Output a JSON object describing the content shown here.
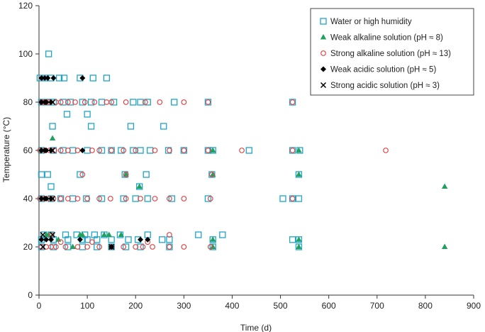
{
  "chart_data": {
    "type": "scatter",
    "xlabel": "Time (d)",
    "ylabel": "Temperature (°C)",
    "xlim": [
      0,
      900
    ],
    "ylim": [
      0,
      120
    ],
    "xticks": [
      0,
      100,
      200,
      300,
      400,
      500,
      600,
      700,
      800,
      900
    ],
    "yticks": [
      0,
      20,
      40,
      60,
      80,
      100,
      120
    ],
    "grid": false,
    "legend_position": "top-right",
    "series": [
      {
        "name": "Water or high humidity",
        "marker": "open-square",
        "color": "#1fa5c8",
        "points": [
          [
            2,
            90
          ],
          [
            14,
            90
          ],
          [
            25,
            90
          ],
          [
            42,
            90
          ],
          [
            52,
            90
          ],
          [
            85,
            90
          ],
          [
            112,
            90
          ],
          [
            140,
            90
          ],
          [
            20,
            100
          ],
          [
            5,
            80
          ],
          [
            18,
            80
          ],
          [
            30,
            80
          ],
          [
            50,
            80
          ],
          [
            65,
            80
          ],
          [
            90,
            80
          ],
          [
            108,
            80
          ],
          [
            130,
            80
          ],
          [
            155,
            80
          ],
          [
            195,
            80
          ],
          [
            210,
            80
          ],
          [
            225,
            80
          ],
          [
            280,
            80
          ],
          [
            350,
            80
          ],
          [
            525,
            80
          ],
          [
            58,
            75
          ],
          [
            100,
            75
          ],
          [
            28,
            70
          ],
          [
            108,
            70
          ],
          [
            190,
            70
          ],
          [
            258,
            70
          ],
          [
            5,
            60
          ],
          [
            30,
            60
          ],
          [
            50,
            60
          ],
          [
            70,
            60
          ],
          [
            100,
            60
          ],
          [
            130,
            60
          ],
          [
            150,
            60
          ],
          [
            170,
            60
          ],
          [
            195,
            60
          ],
          [
            210,
            60
          ],
          [
            230,
            60
          ],
          [
            268,
            60
          ],
          [
            300,
            60
          ],
          [
            350,
            60
          ],
          [
            360,
            60
          ],
          [
            435,
            60
          ],
          [
            525,
            60
          ],
          [
            540,
            60
          ],
          [
            5,
            50
          ],
          [
            18,
            50
          ],
          [
            85,
            50
          ],
          [
            178,
            50
          ],
          [
            222,
            50
          ],
          [
            358,
            50
          ],
          [
            538,
            50
          ],
          [
            25,
            45
          ],
          [
            208,
            45
          ],
          [
            5,
            40
          ],
          [
            25,
            40
          ],
          [
            45,
            40
          ],
          [
            70,
            40
          ],
          [
            98,
            40
          ],
          [
            130,
            40
          ],
          [
            175,
            40
          ],
          [
            200,
            40
          ],
          [
            225,
            40
          ],
          [
            275,
            40
          ],
          [
            350,
            40
          ],
          [
            505,
            40
          ],
          [
            525,
            40
          ],
          [
            538,
            40
          ],
          [
            10,
            25
          ],
          [
            25,
            25
          ],
          [
            55,
            25
          ],
          [
            78,
            25
          ],
          [
            95,
            25
          ],
          [
            115,
            25
          ],
          [
            135,
            25
          ],
          [
            168,
            25
          ],
          [
            225,
            25
          ],
          [
            330,
            25
          ],
          [
            380,
            25
          ],
          [
            5,
            23
          ],
          [
            30,
            23
          ],
          [
            60,
            23
          ],
          [
            90,
            23
          ],
          [
            100,
            23
          ],
          [
            120,
            23
          ],
          [
            150,
            23
          ],
          [
            185,
            23
          ],
          [
            205,
            23
          ],
          [
            255,
            23
          ],
          [
            270,
            23
          ],
          [
            360,
            23
          ],
          [
            525,
            23
          ],
          [
            538,
            23
          ],
          [
            5,
            20
          ],
          [
            30,
            20
          ],
          [
            60,
            20
          ],
          [
            90,
            20
          ],
          [
            120,
            20
          ],
          [
            150,
            20
          ],
          [
            180,
            20
          ],
          [
            210,
            20
          ],
          [
            270,
            20
          ],
          [
            360,
            20
          ],
          [
            538,
            20
          ]
        ]
      },
      {
        "name": "Weak alkaline solution (pH ≈ 8)",
        "marker": "filled-triangle",
        "color": "#22a060",
        "points": [
          [
            28,
            65
          ],
          [
            5,
            60
          ],
          [
            360,
            60
          ],
          [
            538,
            60
          ],
          [
            15,
            40
          ],
          [
            538,
            50
          ],
          [
            360,
            50
          ],
          [
            180,
            50
          ],
          [
            208,
            45
          ],
          [
            840,
            45
          ],
          [
            15,
            25
          ],
          [
            20,
            25
          ],
          [
            85,
            25
          ],
          [
            90,
            25
          ],
          [
            135,
            25
          ],
          [
            145,
            25
          ],
          [
            170,
            25
          ],
          [
            40,
            23
          ],
          [
            360,
            23
          ],
          [
            538,
            23
          ],
          [
            70,
            20
          ],
          [
            360,
            20
          ],
          [
            538,
            20
          ],
          [
            840,
            20
          ]
        ]
      },
      {
        "name": "Strong alkaline solution (pH ≈ 13)",
        "marker": "open-circle",
        "color": "#e04848",
        "points": [
          [
            5,
            80
          ],
          [
            10,
            80
          ],
          [
            15,
            80
          ],
          [
            20,
            80
          ],
          [
            35,
            80
          ],
          [
            45,
            80
          ],
          [
            60,
            80
          ],
          [
            75,
            80
          ],
          [
            95,
            80
          ],
          [
            115,
            80
          ],
          [
            140,
            80
          ],
          [
            150,
            80
          ],
          [
            180,
            80
          ],
          [
            220,
            80
          ],
          [
            250,
            80
          ],
          [
            300,
            80
          ],
          [
            350,
            80
          ],
          [
            525,
            80
          ],
          [
            2,
            60
          ],
          [
            12,
            60
          ],
          [
            22,
            60
          ],
          [
            32,
            60
          ],
          [
            45,
            60
          ],
          [
            60,
            60
          ],
          [
            80,
            60
          ],
          [
            110,
            60
          ],
          [
            125,
            60
          ],
          [
            150,
            60
          ],
          [
            175,
            60
          ],
          [
            200,
            60
          ],
          [
            240,
            60
          ],
          [
            270,
            60
          ],
          [
            300,
            60
          ],
          [
            350,
            60
          ],
          [
            420,
            60
          ],
          [
            525,
            60
          ],
          [
            718,
            60
          ],
          [
            90,
            50
          ],
          [
            180,
            50
          ],
          [
            358,
            50
          ],
          [
            2,
            40
          ],
          [
            10,
            40
          ],
          [
            20,
            40
          ],
          [
            30,
            40
          ],
          [
            45,
            40
          ],
          [
            60,
            40
          ],
          [
            80,
            40
          ],
          [
            100,
            40
          ],
          [
            125,
            40
          ],
          [
            148,
            40
          ],
          [
            180,
            40
          ],
          [
            210,
            40
          ],
          [
            240,
            40
          ],
          [
            270,
            40
          ],
          [
            300,
            40
          ],
          [
            355,
            40
          ],
          [
            525,
            40
          ],
          [
            25,
            25
          ],
          [
            270,
            25
          ],
          [
            45,
            22
          ],
          [
            110,
            22
          ],
          [
            225,
            22
          ],
          [
            5,
            20
          ],
          [
            15,
            20
          ],
          [
            25,
            20
          ],
          [
            35,
            20
          ],
          [
            55,
            20
          ],
          [
            80,
            20
          ],
          [
            100,
            20
          ],
          [
            125,
            20
          ],
          [
            150,
            20
          ],
          [
            175,
            20
          ],
          [
            200,
            20
          ],
          [
            215,
            20
          ],
          [
            235,
            20
          ],
          [
            270,
            20
          ],
          [
            300,
            20
          ],
          [
            355,
            20
          ]
        ]
      },
      {
        "name": "Weak acidic solution (pH ≈ 5)",
        "marker": "filled-diamond",
        "color": "#000000",
        "points": [
          [
            5,
            90
          ],
          [
            12,
            90
          ],
          [
            18,
            90
          ],
          [
            30,
            90
          ],
          [
            90,
            90
          ],
          [
            5,
            80
          ],
          [
            15,
            80
          ],
          [
            25,
            80
          ],
          [
            5,
            60
          ],
          [
            15,
            60
          ],
          [
            25,
            60
          ],
          [
            90,
            60
          ],
          [
            5,
            40
          ],
          [
            15,
            40
          ],
          [
            25,
            40
          ],
          [
            5,
            23
          ],
          [
            15,
            23
          ],
          [
            25,
            23
          ],
          [
            85,
            23
          ],
          [
            210,
            23
          ],
          [
            225,
            23
          ],
          [
            150,
            20
          ]
        ]
      },
      {
        "name": "Strong acidic solution (pH ≈ 3)",
        "marker": "cross",
        "color": "#000000",
        "points": [
          [
            8,
            80
          ],
          [
            28,
            80
          ],
          [
            8,
            60
          ],
          [
            28,
            60
          ],
          [
            8,
            40
          ],
          [
            28,
            40
          ],
          [
            8,
            25
          ],
          [
            28,
            25
          ],
          [
            8,
            20
          ],
          [
            150,
            20
          ]
        ]
      }
    ]
  }
}
